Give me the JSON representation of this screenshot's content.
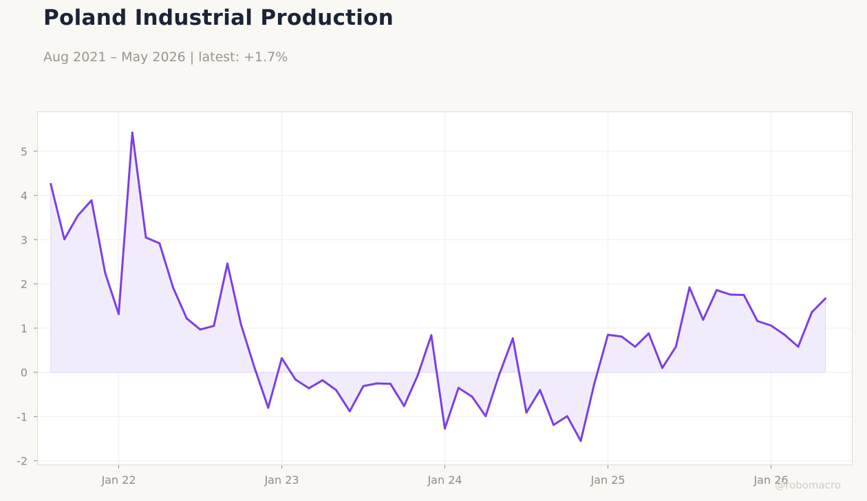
{
  "header": {
    "title": "Poland Industrial Production",
    "subtitle": "Aug 2021 – May 2026 | latest: +1.7%"
  },
  "watermark": "@robomacro",
  "colors": {
    "line": "#7b3fe4",
    "fill": "#f1ecfb",
    "fill_edge": "#e1d6f6",
    "grid": "#f0eeea",
    "frame": "#dcd9d2",
    "plot_bg": "#ffffff",
    "page_bg": "#f9f8f4"
  },
  "chart_data": {
    "type": "area",
    "title": "Poland Industrial Production",
    "xlabel": "",
    "ylabel": "",
    "ylim": [
      -2.1,
      5.9
    ],
    "grid": true,
    "legend": "none",
    "x_range": [
      "2021-07",
      "2026-07"
    ],
    "y_ticks": [
      -2,
      -1,
      0,
      1,
      2,
      3,
      4,
      5
    ],
    "x_ticks": [
      {
        "label": "Jan 22",
        "date": "2022-01"
      },
      {
        "label": "Jan 23",
        "date": "2023-01"
      },
      {
        "label": "Jan 24",
        "date": "2024-01"
      },
      {
        "label": "Jan 25",
        "date": "2025-01"
      },
      {
        "label": "Jan 26",
        "date": "2026-01"
      }
    ],
    "x": [
      "2021-08",
      "2021-09",
      "2021-10",
      "2021-11",
      "2021-12",
      "2022-01",
      "2022-02",
      "2022-03",
      "2022-04",
      "2022-05",
      "2022-06",
      "2022-07",
      "2022-08",
      "2022-09",
      "2022-10",
      "2022-11",
      "2022-12",
      "2023-01",
      "2023-02",
      "2023-03",
      "2023-04",
      "2023-05",
      "2023-06",
      "2023-07",
      "2023-08",
      "2023-09",
      "2023-10",
      "2023-11",
      "2023-12",
      "2024-01",
      "2024-02",
      "2024-03",
      "2024-04",
      "2024-05",
      "2024-06",
      "2024-07",
      "2024-08",
      "2024-09",
      "2024-10",
      "2024-11",
      "2024-12",
      "2025-01",
      "2025-02",
      "2025-03",
      "2025-04",
      "2025-05",
      "2025-06",
      "2025-07",
      "2025-08",
      "2025-09",
      "2025-10",
      "2025-11",
      "2025-12",
      "2026-01",
      "2026-02",
      "2026-03",
      "2026-04",
      "2026-05"
    ],
    "series": [
      {
        "values": [
          4.26,
          3.01,
          3.55,
          3.89,
          2.25,
          1.32,
          5.42,
          3.05,
          2.92,
          1.92,
          1.22,
          0.97,
          1.05,
          2.46,
          1.08,
          0.1,
          -0.8,
          0.32,
          -0.16,
          -0.36,
          -0.18,
          -0.4,
          -0.88,
          -0.31,
          -0.25,
          -0.26,
          -0.76,
          -0.07,
          0.84,
          -1.27,
          -0.35,
          -0.55,
          -0.99,
          -0.05,
          0.77,
          -0.91,
          -0.4,
          -1.19,
          -0.99,
          -1.55,
          -0.25,
          0.85,
          0.81,
          0.58,
          0.88,
          0.1,
          0.58,
          1.92,
          1.19,
          1.86,
          1.76,
          1.75,
          1.16,
          1.06,
          0.85,
          0.58,
          1.36,
          1.67
        ]
      }
    ]
  }
}
